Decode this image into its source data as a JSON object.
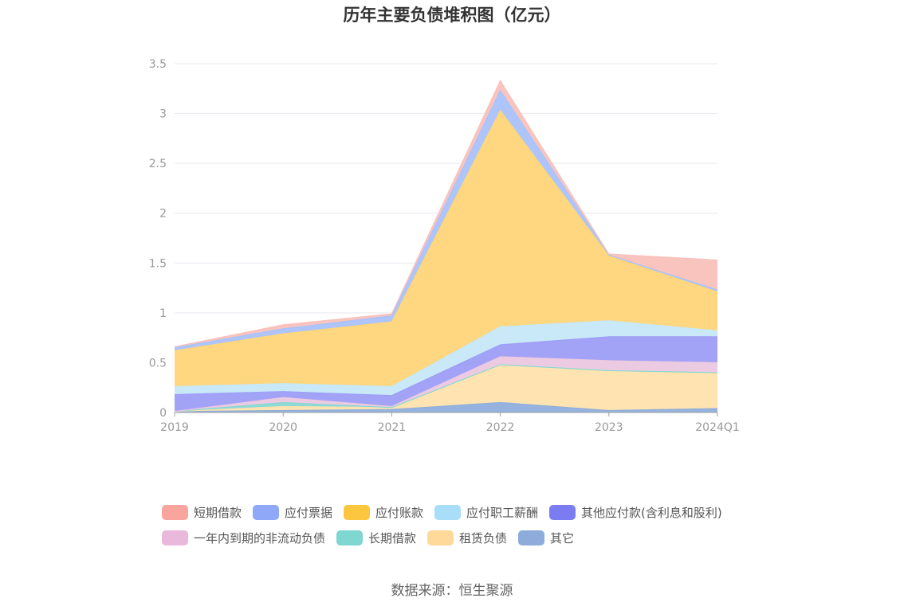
{
  "chart_data": {
    "type": "area",
    "stacked": true,
    "title": "历年主要负债堆积图（亿元）",
    "categories": [
      "2019",
      "2020",
      "2021",
      "2022",
      "2023",
      "2024Q1"
    ],
    "ylim": [
      0,
      3.5
    ],
    "yticks": [
      "0",
      "0.5",
      "1",
      "1.5",
      "2",
      "2.5",
      "3",
      "3.5"
    ],
    "grid": true,
    "legend_position": "bottom",
    "series": [
      {
        "name": "其它",
        "color": "#8fafdc",
        "values": [
          0.01,
          0.02,
          0.03,
          0.1,
          0.02,
          0.04
        ]
      },
      {
        "name": "租赁负债",
        "color": "#ffe1ad",
        "values": [
          0.0,
          0.04,
          0.02,
          0.38,
          0.4,
          0.36
        ]
      },
      {
        "name": "长期借款",
        "color": "#88d8d4",
        "values": [
          0.0,
          0.04,
          0.0,
          0.0,
          0.0,
          0.0
        ]
      },
      {
        "name": "一年内到期的非流动负债",
        "color": "#ebc8e0",
        "values": [
          0.0,
          0.05,
          0.01,
          0.08,
          0.1,
          0.1
        ]
      },
      {
        "name": "其他应付款(含利息和股利)",
        "color": "#9d9ef6",
        "values": [
          0.17,
          0.06,
          0.11,
          0.12,
          0.24,
          0.26
        ]
      },
      {
        "name": "应付职工薪酬",
        "color": "#c6e8f8",
        "values": [
          0.08,
          0.08,
          0.09,
          0.18,
          0.16,
          0.06
        ]
      },
      {
        "name": "应付账款",
        "color": "#fed579",
        "values": [
          0.36,
          0.5,
          0.65,
          2.17,
          0.65,
          0.39
        ]
      },
      {
        "name": "应付票据",
        "color": "#a9c2fb",
        "values": [
          0.03,
          0.05,
          0.06,
          0.2,
          0.01,
          0.02
        ]
      },
      {
        "name": "短期借款",
        "color": "#f9c1bb",
        "values": [
          0.01,
          0.04,
          0.02,
          0.1,
          0.01,
          0.3
        ]
      }
    ],
    "legend": [
      {
        "name": "短期借款",
        "color": "#f9a59e"
      },
      {
        "name": "应付票据",
        "color": "#8fa8f8"
      },
      {
        "name": "应付账款",
        "color": "#fdc63f"
      },
      {
        "name": "应付职工薪酬",
        "color": "#a9def8"
      },
      {
        "name": "其他应付款(含利息和股利)",
        "color": "#7b7cf2"
      },
      {
        "name": "一年内到期的非流动负债",
        "color": "#e9b8da"
      },
      {
        "name": "长期借款",
        "color": "#80d6d0"
      },
      {
        "name": "租赁负债",
        "color": "#ffd99a"
      },
      {
        "name": "其它",
        "color": "#8dacdb"
      }
    ]
  },
  "footer": {
    "source": "数据来源：恒生聚源"
  }
}
